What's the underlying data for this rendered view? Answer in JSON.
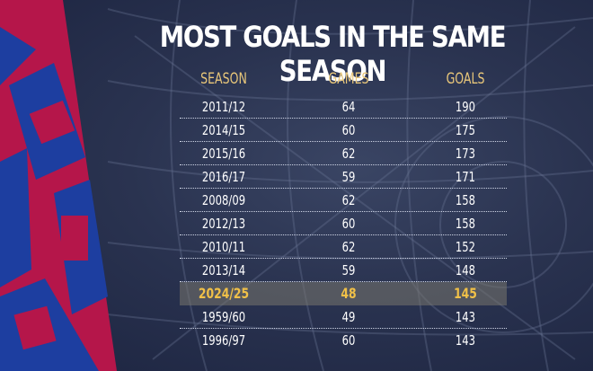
{
  "title": "MOST GOALS IN THE SAME SEASON",
  "colors": {
    "header": "#e9c77a",
    "highlight_text": "#f0c048",
    "stripe_blue": "#1d3ea0",
    "stripe_red": "#b5164a"
  },
  "table": {
    "headers": [
      "SEASON",
      "GAMES",
      "GOALS"
    ],
    "rows": [
      {
        "season": "2011/12",
        "games": "64",
        "goals": "190"
      },
      {
        "season": "2014/15",
        "games": "60",
        "goals": "175"
      },
      {
        "season": "2015/16",
        "games": "62",
        "goals": "173"
      },
      {
        "season": "2016/17",
        "games": "59",
        "goals": "171"
      },
      {
        "season": "2008/09",
        "games": "62",
        "goals": "158"
      },
      {
        "season": "2012/13",
        "games": "60",
        "goals": "158"
      },
      {
        "season": "2010/11",
        "games": "62",
        "goals": "152"
      },
      {
        "season": "2013/14",
        "games": "59",
        "goals": "148"
      },
      {
        "season": "2024/25",
        "games": "48",
        "goals": "145",
        "highlight": true
      },
      {
        "season": "1959/60",
        "games": "49",
        "goals": "143"
      },
      {
        "season": "1996/97",
        "games": "60",
        "goals": "143"
      }
    ]
  }
}
